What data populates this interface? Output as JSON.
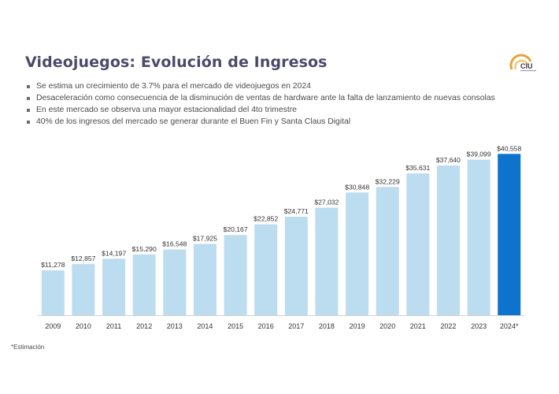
{
  "slide": {
    "title": "Videojuegos: Evolución de Ingresos",
    "logo_text": "CIU",
    "bullets": [
      "Se estima un crecimiento de 3.7% para el mercado de videojuegos en 2024",
      "Desaceleración como consecuencia de la disminución de ventas de hardware ante la falta de lanzamiento de nuevas consolas",
      "En este mercado se observa una mayor estacionalidad del 4to trimestre",
      "40% de los ingresos del mercado se generar durante el Buen Fin y Santa Claus Digital"
    ],
    "footnote": "*Estimación"
  },
  "colors": {
    "bar": "#bcdcef",
    "highlight_bar": "#0e73cc",
    "title": "#4a4a6a",
    "logo": "#e8a23a",
    "text": "#333333"
  },
  "chart_data": {
    "type": "bar",
    "title": "",
    "xlabel": "",
    "ylabel": "",
    "ylim": [
      0,
      42000
    ],
    "grid": false,
    "categories": [
      "2009",
      "2010",
      "2011",
      "2012",
      "2013",
      "2014",
      "2015",
      "2016",
      "2017",
      "2018",
      "2019",
      "2020",
      "2021",
      "2022",
      "2023",
      "2024*"
    ],
    "values": [
      11278,
      12857,
      14197,
      15290,
      16548,
      17925,
      20167,
      22852,
      24771,
      27032,
      30848,
      32229,
      35631,
      37640,
      39099,
      40558
    ],
    "value_labels": [
      "$11,278",
      "$12,857",
      "$14,197",
      "$15,290",
      "$16,548",
      "$17,925",
      "$20,167",
      "$22,852",
      "$24,771",
      "$27,032",
      "$30,848",
      "$32,229",
      "$35,631",
      "$37,640",
      "$39,099",
      "$40,558"
    ],
    "highlight_index": 15
  }
}
